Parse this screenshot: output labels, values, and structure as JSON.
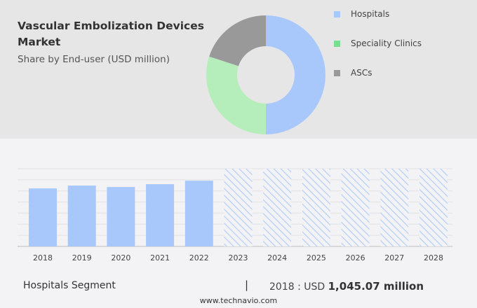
{
  "header": {
    "title": "Vascular Embolization Devices Market",
    "subtitle": "Share by End-user (USD million)"
  },
  "chart_data": [
    {
      "type": "pie",
      "donut": true,
      "categories": [
        "Hospitals",
        "Speciality Clinics",
        "ASCs"
      ],
      "values": [
        50,
        30,
        20
      ],
      "colors": [
        "#a8c8fc",
        "#b6eebb",
        "#999999"
      ],
      "legend_colors": [
        "#a8c8fc",
        "#76e08e",
        "#999999"
      ],
      "legend": "right"
    },
    {
      "type": "bar",
      "categories": [
        "2018",
        "2019",
        "2020",
        "2021",
        "2022",
        "2023",
        "2024",
        "2025",
        "2026",
        "2027",
        "2028"
      ],
      "values": [
        1045.07,
        1096,
        1070,
        1121,
        1184,
        null,
        null,
        null,
        null,
        null,
        null
      ],
      "forecast": [
        "2023",
        "2024",
        "2025",
        "2026",
        "2027",
        "2028"
      ],
      "ylim": [
        0,
        1400
      ],
      "grid": true,
      "color": "#a8c8fc",
      "hatch_color": "#b5cff7"
    }
  ],
  "footer": {
    "segment": "Hospitals Segment",
    "separator": "|",
    "year_label": "2018 : USD ",
    "value": "1,045.07 million",
    "url": "www.technavio.com"
  }
}
